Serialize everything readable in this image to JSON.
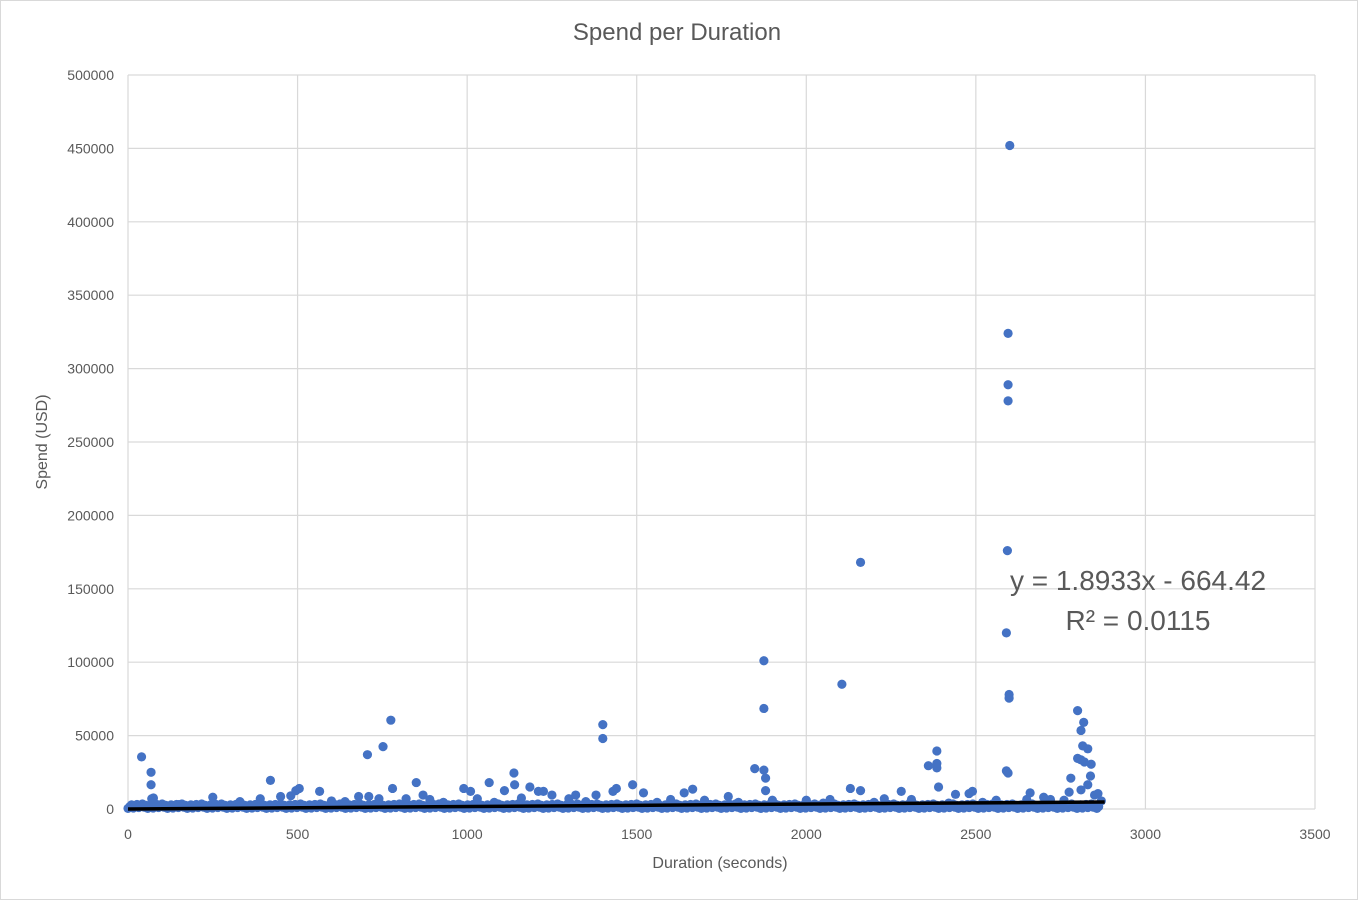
{
  "chart_data": {
    "type": "scatter",
    "title": "Spend per Duration",
    "xlabel": "Duration (seconds)",
    "ylabel": "Spend (USD)",
    "xlim": [
      0,
      3500
    ],
    "ylim": [
      0,
      500000
    ],
    "x_ticks": [
      0,
      500,
      1000,
      1500,
      2000,
      2500,
      3000,
      3500
    ],
    "y_ticks": [
      0,
      50000,
      100000,
      150000,
      200000,
      250000,
      300000,
      350000,
      400000,
      450000,
      500000
    ],
    "grid": true,
    "legend": "none",
    "colors": {
      "points": "#4472C4",
      "trendline": "#000000",
      "grid": "#d9d9d9",
      "text": "#595959"
    },
    "trendline": {
      "type": "linear",
      "slope": 1.8933,
      "intercept": -664.42,
      "x_range": [
        0,
        2880
      ],
      "equation_label": "y = 1.8933x - 664.42",
      "r2_label": "R² = 0.0115"
    },
    "points": [
      [
        2600,
        452000
      ],
      [
        2595,
        324000
      ],
      [
        2595,
        289000
      ],
      [
        2595,
        278000
      ],
      [
        2593,
        176000
      ],
      [
        2160,
        168000
      ],
      [
        2590,
        120000
      ],
      [
        1875,
        101000
      ],
      [
        2105,
        85000
      ],
      [
        2598,
        78000
      ],
      [
        2598,
        75500
      ],
      [
        1875,
        68500
      ],
      [
        2800,
        67000
      ],
      [
        775,
        60500
      ],
      [
        2818,
        59000
      ],
      [
        1400,
        57500
      ],
      [
        2810,
        53500
      ],
      [
        1400,
        48000
      ],
      [
        752,
        42500
      ],
      [
        2815,
        43000
      ],
      [
        2830,
        41000
      ],
      [
        2385,
        39500
      ],
      [
        706,
        37000
      ],
      [
        40,
        35500
      ],
      [
        2800,
        34500
      ],
      [
        2810,
        33500
      ],
      [
        2820,
        32000
      ],
      [
        2385,
        31000
      ],
      [
        2840,
        30500
      ],
      [
        2360,
        29500
      ],
      [
        2385,
        28000
      ],
      [
        1848,
        27500
      ],
      [
        1875,
        26500
      ],
      [
        2590,
        26000
      ],
      [
        2595,
        24500
      ],
      [
        68,
        25000
      ],
      [
        1138,
        24500
      ],
      [
        2838,
        22500
      ],
      [
        1880,
        21000
      ],
      [
        2780,
        21000
      ],
      [
        420,
        19500
      ],
      [
        850,
        18000
      ],
      [
        1065,
        18000
      ],
      [
        1140,
        16500
      ],
      [
        2830,
        16500
      ],
      [
        68,
        16500
      ],
      [
        1488,
        16500
      ],
      [
        2160,
        12500
      ],
      [
        2130,
        14000
      ],
      [
        2390,
        15000
      ],
      [
        1185,
        15000
      ],
      [
        780,
        14000
      ],
      [
        990,
        14000
      ],
      [
        505,
        14000
      ],
      [
        1440,
        14000
      ],
      [
        1665,
        13500
      ],
      [
        2810,
        13000
      ],
      [
        495,
        12500
      ],
      [
        1010,
        12000
      ],
      [
        1110,
        12500
      ],
      [
        1210,
        12000
      ],
      [
        1225,
        12000
      ],
      [
        1880,
        12500
      ],
      [
        2280,
        12000
      ],
      [
        2490,
        12000
      ],
      [
        2775,
        11500
      ],
      [
        565,
        12000
      ],
      [
        2660,
        11000
      ],
      [
        1640,
        11000
      ],
      [
        1520,
        11000
      ],
      [
        1430,
        12000
      ],
      [
        1380,
        9500
      ],
      [
        2440,
        10000
      ],
      [
        2480,
        10500
      ],
      [
        2860,
        10500
      ],
      [
        1250,
        9500
      ],
      [
        1320,
        9500
      ],
      [
        870,
        9500
      ],
      [
        680,
        8500
      ],
      [
        710,
        8500
      ],
      [
        250,
        8000
      ],
      [
        450,
        8500
      ],
      [
        480,
        9000
      ],
      [
        1770,
        8500
      ],
      [
        2700,
        8000
      ],
      [
        2850,
        9500
      ],
      [
        2720,
        6500
      ],
      [
        70,
        7000
      ],
      [
        75,
        7500
      ],
      [
        390,
        7000
      ],
      [
        740,
        7000
      ],
      [
        820,
        7000
      ],
      [
        890,
        6500
      ],
      [
        1030,
        7000
      ],
      [
        1160,
        7500
      ],
      [
        1300,
        7000
      ],
      [
        1600,
        6500
      ],
      [
        1700,
        6000
      ],
      [
        1900,
        6000
      ],
      [
        2000,
        6000
      ],
      [
        2070,
        6500
      ],
      [
        2230,
        7000
      ],
      [
        2310,
        6500
      ],
      [
        2560,
        6000
      ],
      [
        2650,
        6500
      ],
      [
        2760,
        6000
      ],
      [
        2870,
        5500
      ],
      [
        150,
        3000
      ],
      [
        330,
        5000
      ],
      [
        600,
        5500
      ],
      [
        640,
        5000
      ],
      [
        930,
        4500
      ],
      [
        1080,
        4500
      ],
      [
        1350,
        5000
      ],
      [
        1560,
        4500
      ],
      [
        1800,
        4500
      ],
      [
        2050,
        4000
      ],
      [
        2200,
        4500
      ],
      [
        2420,
        4000
      ],
      [
        2520,
        4500
      ]
    ]
  }
}
